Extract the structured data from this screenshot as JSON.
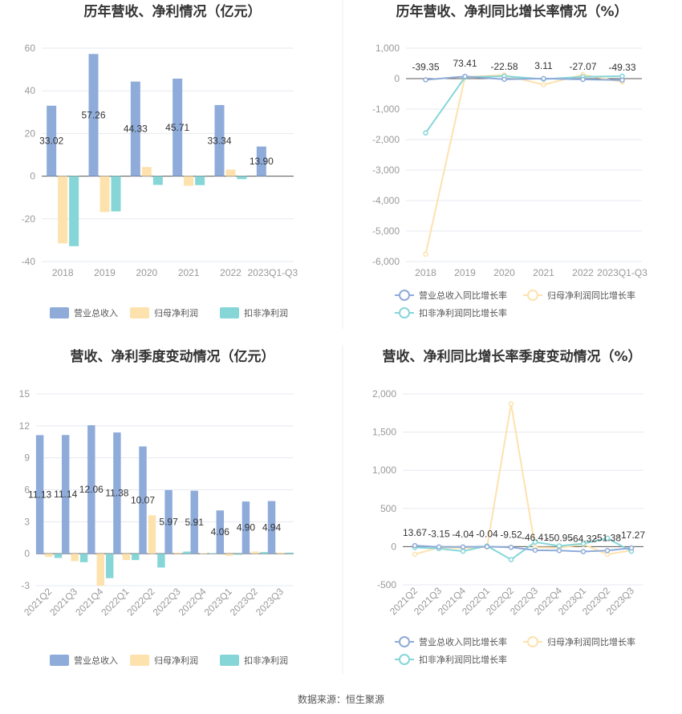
{
  "source": "数据来源：恒生聚源",
  "colors": {
    "revenue": "#8eabd9",
    "parent_profit": "#fde2ae",
    "deducted_profit": "#86d6d8",
    "grid": "#e6e9f0",
    "axis": "#555555"
  },
  "legend_labels": {
    "bar": [
      "营业总收入",
      "归母净利润",
      "扣非净利润"
    ],
    "line": [
      "营业总收入同比增长率",
      "归母净利润同比增长率",
      "扣非净利润同比增长率"
    ]
  },
  "chart_data": [
    {
      "id": "annual-bar",
      "type": "bar",
      "title": "历年营收、净利情况（亿元）",
      "categories": [
        "2018",
        "2019",
        "2020",
        "2021",
        "2022",
        "2023Q1-Q3"
      ],
      "ylim": [
        -40,
        60
      ],
      "yticks": [
        -40,
        -20,
        0,
        20,
        40,
        60
      ],
      "ytick_labels": [
        "-40",
        "-20",
        "0",
        "20",
        "40",
        "60"
      ],
      "series": [
        {
          "name": "营业总收入",
          "values": [
            33.02,
            57.26,
            44.33,
            45.71,
            33.34,
            13.9
          ],
          "labels": [
            "33.02",
            "57.26",
            "44.33",
            "45.71",
            "33.34",
            "13.90"
          ]
        },
        {
          "name": "归母净利润",
          "values": [
            -31.5,
            -16.8,
            4.3,
            -4.5,
            3.1,
            0
          ]
        },
        {
          "name": "扣非净利润",
          "values": [
            -32.8,
            -16.5,
            -4.1,
            -4.2,
            -1.4,
            0
          ]
        }
      ],
      "grid": true,
      "legend": "bottom"
    },
    {
      "id": "annual-line",
      "type": "line",
      "title": "历年营收、净利同比增长率情况（%）",
      "categories": [
        "2018",
        "2019",
        "2020",
        "2021",
        "2022",
        "2023Q1-Q3"
      ],
      "ylim": [
        -6000,
        1000
      ],
      "yticks": [
        -6000,
        -5000,
        -4000,
        -3000,
        -2000,
        -1000,
        0,
        1000
      ],
      "ytick_labels": [
        "-6,000",
        "-5,000",
        "-4,000",
        "-3,000",
        "-2,000",
        "-1,000",
        "0",
        "1,000"
      ],
      "series": [
        {
          "name": "营业总收入同比增长率",
          "values": [
            -39.35,
            73.41,
            -22.58,
            3.11,
            -27.07,
            -49.33
          ],
          "labels": [
            "-39.35",
            "73.41",
            "-22.58",
            "3.11",
            "-27.07",
            "-49.33"
          ]
        },
        {
          "name": "归母净利润同比增长率",
          "values": [
            -5760,
            50,
            120,
            -200,
            130,
            -110
          ]
        },
        {
          "name": "扣非净利润同比增长率",
          "values": [
            -1780,
            45,
            80,
            -15,
            60,
            80
          ]
        }
      ],
      "grid": true,
      "legend": "bottom"
    },
    {
      "id": "quarter-bar",
      "type": "bar",
      "title": "营收、净利季度变动情况（亿元）",
      "categories": [
        "2021Q2",
        "2021Q3",
        "2021Q4",
        "2022Q1",
        "2022Q2",
        "2022Q3",
        "2022Q4",
        "2023Q1",
        "2023Q2",
        "2023Q3"
      ],
      "ylim": [
        -3,
        15
      ],
      "yticks": [
        -3,
        0,
        3,
        6,
        9,
        12,
        15
      ],
      "ytick_labels": [
        "-3",
        "0",
        "3",
        "6",
        "9",
        "12",
        "15"
      ],
      "series": [
        {
          "name": "营业总收入",
          "values": [
            11.13,
            11.14,
            12.06,
            11.38,
            10.07,
            5.97,
            5.91,
            4.06,
            4.9,
            4.94
          ],
          "labels": [
            "11.13",
            "11.14",
            "12.06",
            "11.38",
            "10.07",
            "5.97",
            "5.91",
            "4.06",
            "4.90",
            "4.94"
          ]
        },
        {
          "name": "归母净利润",
          "values": [
            -0.3,
            -0.7,
            -3.0,
            -0.6,
            3.6,
            0.1,
            0.05,
            -0.2,
            0.2,
            0.1
          ]
        },
        {
          "name": "扣非净利润",
          "values": [
            -0.4,
            -0.8,
            -2.3,
            -0.6,
            -1.3,
            0.2,
            0.05,
            -0.1,
            0.15,
            0.1
          ]
        }
      ],
      "grid": true,
      "legend": "bottom"
    },
    {
      "id": "quarter-line",
      "type": "line",
      "title": "营收、净利同比增长率季度变动情况（%）",
      "categories": [
        "2021Q2",
        "2021Q3",
        "2021Q4",
        "2022Q1",
        "2022Q2",
        "2022Q3",
        "2022Q4",
        "2023Q1",
        "2023Q2",
        "2023Q3"
      ],
      "ylim": [
        -500,
        2000
      ],
      "yticks": [
        -500,
        0,
        500,
        1000,
        1500,
        2000
      ],
      "ytick_labels": [
        "-500",
        "0",
        "500",
        "1,000",
        "1,500",
        "2,000"
      ],
      "series": [
        {
          "name": "营业总收入同比增长率",
          "values": [
            13.67,
            -3.15,
            -4.04,
            -0.04,
            -9.52,
            -46.41,
            -50.95,
            -64.32,
            -51.38,
            -17.27
          ],
          "labels": [
            "13.67",
            "-3.15",
            "-4.04",
            "-0.04",
            "-9.52",
            "-46.41",
            "-50.95",
            "-64.32",
            "-51.38",
            "-17.27"
          ]
        },
        {
          "name": "归母净利润同比增长率",
          "values": [
            -100,
            -10,
            -20,
            -5,
            1870,
            -10,
            -15,
            30,
            -100,
            -50
          ]
        },
        {
          "name": "扣非净利润同比增长率",
          "values": [
            -10,
            -25,
            -60,
            10,
            -170,
            60,
            10,
            40,
            110,
            -60
          ]
        }
      ],
      "grid": true,
      "legend": "bottom"
    }
  ]
}
